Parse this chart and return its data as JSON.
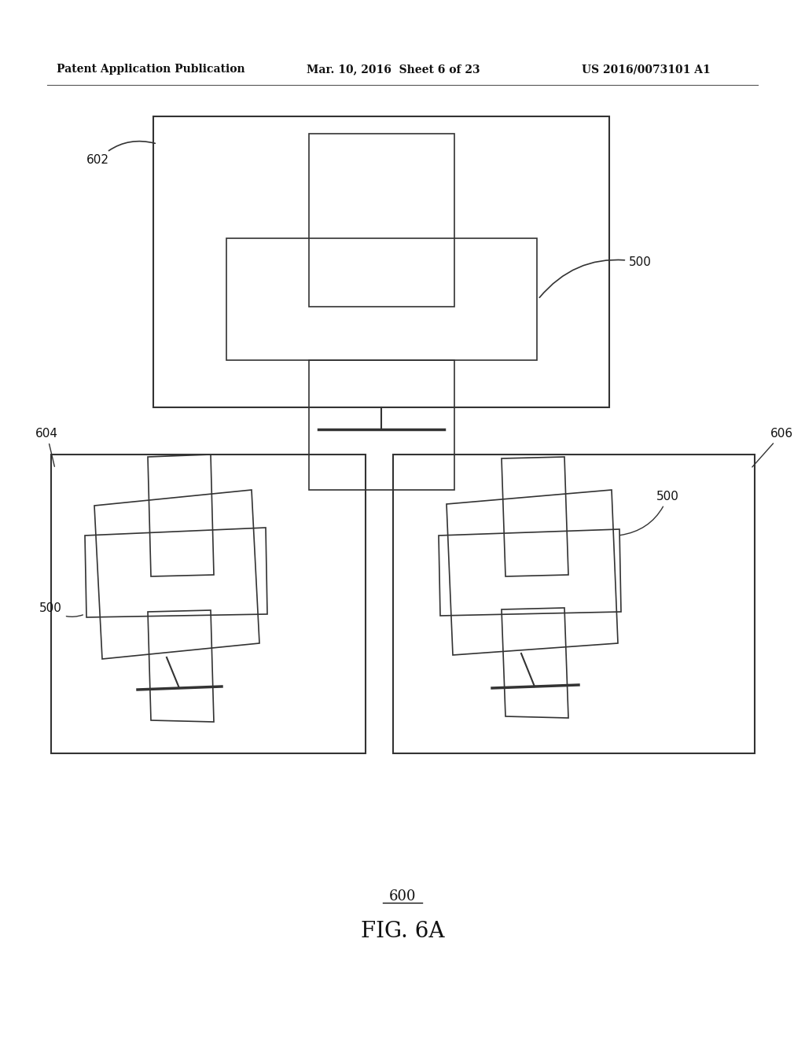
{
  "bg_color": "#ffffff",
  "line_color": "#333333",
  "header_left": "Patent Application Publication",
  "header_mid": "Mar. 10, 2016  Sheet 6 of 23",
  "header_right": "US 2016/0073101 A1",
  "fig_label": "600",
  "fig_name": "FIG. 6A"
}
